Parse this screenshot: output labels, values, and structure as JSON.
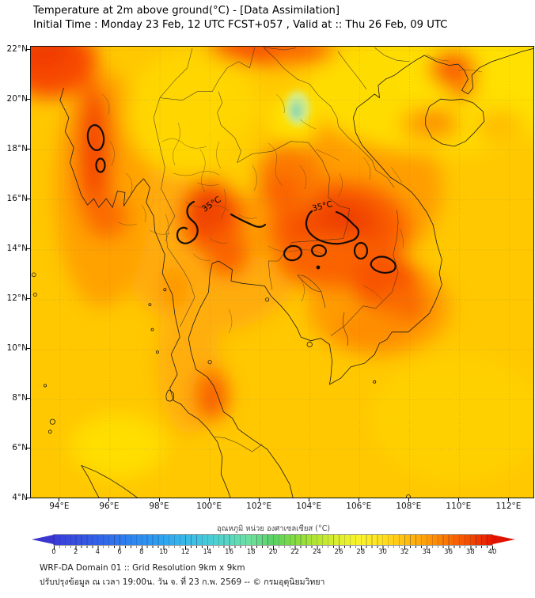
{
  "header": {
    "title_line1": "Temperature at 2m above ground(°C) - [Data Assimilation]",
    "title_line2": "Initial Time : Monday 23 Feb, 12 UTC FCST+057 , Valid at :: Thu 26 Feb, 09 UTC"
  },
  "map": {
    "lat_ticks": [
      {
        "label": "22°N",
        "value": 22
      },
      {
        "label": "20°N",
        "value": 20
      },
      {
        "label": "18°N",
        "value": 18
      },
      {
        "label": "16°N",
        "value": 16
      },
      {
        "label": "14°N",
        "value": 14
      },
      {
        "label": "12°N",
        "value": 12
      },
      {
        "label": "10°N",
        "value": 10
      },
      {
        "label": "8°N",
        "value": 8
      },
      {
        "label": "6°N",
        "value": 6
      },
      {
        "label": "4°N",
        "value": 4
      }
    ],
    "lon_ticks": [
      {
        "label": "94°E",
        "value": 94
      },
      {
        "label": "96°E",
        "value": 96
      },
      {
        "label": "98°E",
        "value": 98
      },
      {
        "label": "100°E",
        "value": 100
      },
      {
        "label": "102°E",
        "value": 102
      },
      {
        "label": "104°E",
        "value": 104
      },
      {
        "label": "106°E",
        "value": 106
      },
      {
        "label": "108°E",
        "value": 108
      },
      {
        "label": "110°E",
        "value": 110
      },
      {
        "label": "112°E",
        "value": 112
      }
    ],
    "contour_level_c": 35,
    "contour_labels": [
      {
        "text": "35°C"
      },
      {
        "text": "35°C"
      }
    ],
    "field_colors": {
      "sea_gold": "#FFC800",
      "warm_orange": "#FFA206",
      "hot_red": "#F84C00",
      "cool_yellow": "#FFD600",
      "cool_green": "#AEE09C"
    }
  },
  "colorbar": {
    "title": "อุณหภูมิ หน่วย องศาเซลเซียส (°C)",
    "min": 0,
    "max": 40,
    "tick_values": [
      0,
      2,
      4,
      6,
      8,
      10,
      12,
      14,
      16,
      18,
      20,
      22,
      24,
      26,
      28,
      30,
      32,
      34,
      36,
      38,
      40
    ],
    "gradient_stops": [
      {
        "value": 0,
        "color": "#3a3cd8"
      },
      {
        "value": 2,
        "color": "#3650e0"
      },
      {
        "value": 4,
        "color": "#3263e7"
      },
      {
        "value": 6,
        "color": "#2f79ed"
      },
      {
        "value": 8,
        "color": "#2d8ff2"
      },
      {
        "value": 10,
        "color": "#2fa5f0"
      },
      {
        "value": 12,
        "color": "#38b9e8"
      },
      {
        "value": 14,
        "color": "#46cbd9"
      },
      {
        "value": 16,
        "color": "#58d8c0"
      },
      {
        "value": 18,
        "color": "#6fe09b"
      },
      {
        "value": 20,
        "color": "#57d163"
      },
      {
        "value": 22,
        "color": "#86dc3f"
      },
      {
        "value": 24,
        "color": "#b4e631"
      },
      {
        "value": 26,
        "color": "#e0ef2f"
      },
      {
        "value": 28,
        "color": "#fbf32b"
      },
      {
        "value": 30,
        "color": "#ffdf1f"
      },
      {
        "value": 32,
        "color": "#ffc013"
      },
      {
        "value": 34,
        "color": "#ff9d08"
      },
      {
        "value": 36,
        "color": "#fb7203"
      },
      {
        "value": 38,
        "color": "#f34a00"
      },
      {
        "value": 40,
        "color": "#e81600"
      }
    ],
    "arrow_colors": {
      "under": "#3a36cf",
      "over": "#e01200"
    }
  },
  "footer": {
    "line1": "WRF-DA Domain 01 :: Grid Resolution 9km x 9km",
    "line2": "ปรับปรุงข้อมูล ณ เวลา 19:00น. วัน จ. ที่ 23 ก.พ. 2569 -- © กรมอุตุนิยมวิทยา"
  }
}
